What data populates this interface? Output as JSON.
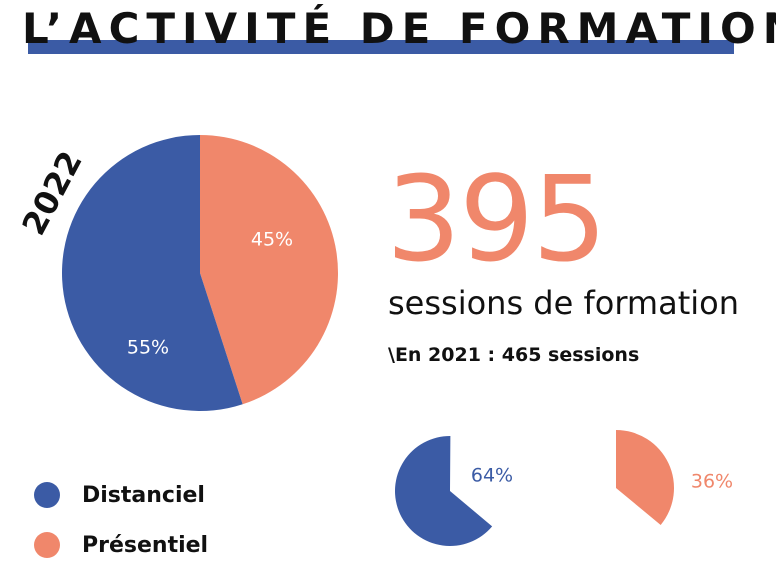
{
  "title": "L’ACTIVITÉ DE FORMATION",
  "year": "2022",
  "headline": {
    "number": "395",
    "label": "sessions de formation",
    "previous": "\\En 2021 : 465 sessions"
  },
  "legend": [
    {
      "label": "Distanciel",
      "color": "#3b5ba5"
    },
    {
      "label": "Présentiel",
      "color": "#f0876b"
    }
  ],
  "colors": {
    "accent_bar": "#3b5ba5",
    "distanciel": "#3b5ba5",
    "presentiel": "#f0876b",
    "title_text": "#111111"
  },
  "chart_data": [
    {
      "type": "pie",
      "year": "2022",
      "slices": [
        {
          "name": "Distanciel",
          "value": 55,
          "label": "55%",
          "color": "#3b5ba5"
        },
        {
          "name": "Présentiel",
          "value": 45,
          "label": "45%",
          "color": "#f0876b"
        }
      ]
    },
    {
      "type": "pie",
      "partial": true,
      "slices": [
        {
          "name": "Distanciel",
          "value": 64,
          "label": "64%",
          "color": "#3b5ba5"
        }
      ]
    },
    {
      "type": "pie",
      "partial": true,
      "slices": [
        {
          "name": "Présentiel",
          "value": 36,
          "label": "36%",
          "color": "#f0876b"
        }
      ]
    }
  ]
}
